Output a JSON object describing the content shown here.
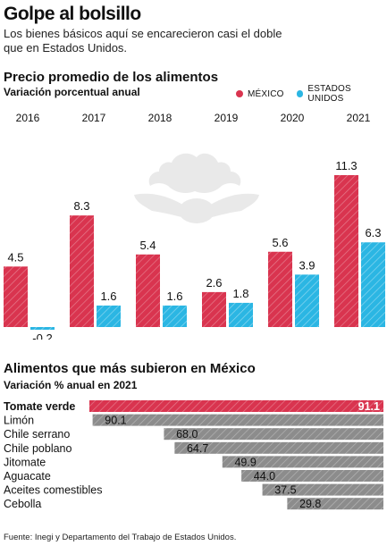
{
  "header": {
    "title": "Golpe al bolsillo",
    "subtitle_line1": "Los bienes básicos aquí se encarecieron casi el doble",
    "subtitle_line2": "que en Estados Unidos."
  },
  "colors": {
    "mexico": "#d9344f",
    "usa": "#2bb6e3",
    "mexico_top": "#d9344f",
    "others": "#8c8c8c"
  },
  "chart_data": [
    {
      "type": "bar",
      "title": "Precio promedio de los alimentos",
      "subtitle": "Variación porcentual anual",
      "categories": [
        "2016",
        "2017",
        "2018",
        "2019",
        "2020",
        "2021"
      ],
      "series": [
        {
          "name": "MÉXICO",
          "values": [
            4.5,
            8.3,
            5.4,
            2.6,
            5.6,
            11.3
          ]
        },
        {
          "name": "ESTADOS UNIDOS",
          "values": [
            -0.2,
            1.6,
            1.6,
            1.8,
            3.9,
            6.3
          ]
        }
      ],
      "value_labels_mexico": [
        "4.5",
        "8.3",
        "5.4",
        "2.6",
        "5.6",
        "11.3"
      ],
      "value_labels_usa": [
        "-0.2",
        "1.6",
        "1.6",
        "1.8",
        "3.9",
        "6.3"
      ],
      "ylim": [
        -0.2,
        11.3
      ],
      "grid": false,
      "legend_position": "top-right"
    },
    {
      "type": "bar",
      "orientation": "horizontal",
      "title": "Alimentos que más subieron en México",
      "subtitle": "Variación % anual en 2021",
      "categories": [
        "Tomate verde",
        "Limón",
        "Chile serrano",
        "Chile poblano",
        "Jitomate",
        "Aguacate",
        "Aceites comestibles",
        "Cebolla"
      ],
      "values": [
        91.1,
        90.1,
        68.0,
        64.7,
        49.9,
        44.0,
        37.5,
        29.8
      ],
      "value_labels": [
        "91.1",
        "90.1",
        "68.0",
        "64.7",
        "49.9",
        "44.0",
        "37.5",
        "29.8"
      ],
      "xlim": [
        0,
        91.1
      ]
    }
  ],
  "footer": {
    "source": "Fuente: Inegi y Departamento del Trabajo de Estados Unidos."
  }
}
